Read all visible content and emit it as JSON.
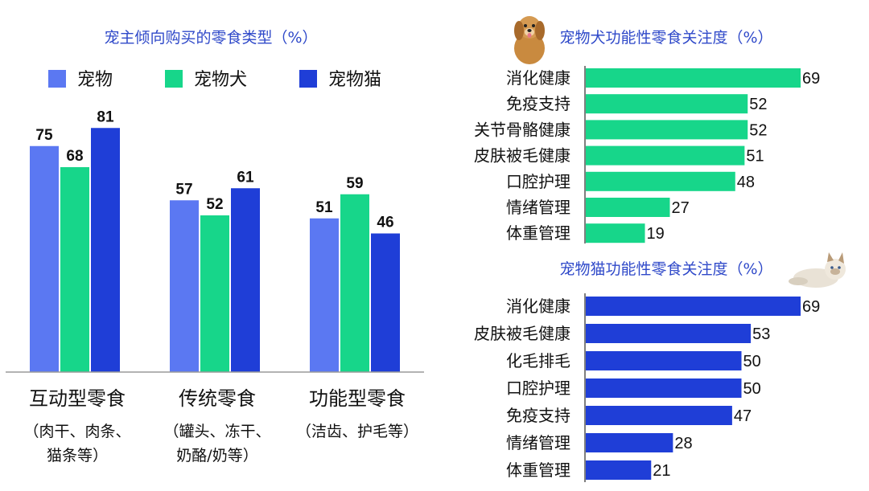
{
  "colors": {
    "pet": "#5b78f2",
    "dog": "#17d68a",
    "cat": "#1f3ed7",
    "title": "#2f49c9"
  },
  "chart_data": [
    {
      "type": "bar",
      "title": "宠主倾向购买的零食类型（%）",
      "categories": [
        "互动型零食",
        "传统零食",
        "功能型零食"
      ],
      "category_notes": [
        [
          "（肉干、肉条、",
          "猫条等）"
        ],
        [
          "（罐头、冻干、",
          "奶酪/奶等）"
        ],
        [
          "（洁齿、护毛等）"
        ]
      ],
      "series": [
        {
          "name": "宠物",
          "values": [
            75,
            57,
            51
          ]
        },
        {
          "name": "宠物犬",
          "values": [
            68,
            52,
            59
          ]
        },
        {
          "name": "宠物猫",
          "values": [
            81,
            61,
            46
          ]
        }
      ],
      "ylim": [
        0,
        100
      ],
      "legend": "top",
      "grid": false
    },
    {
      "type": "bar",
      "orientation": "horizontal",
      "title": "宠物犬功能性零食关注度（%）",
      "categories": [
        "消化健康",
        "免疫支持",
        "关节骨骼健康",
        "皮肤被毛健康",
        "口腔护理",
        "情绪管理",
        "体重管理"
      ],
      "values": [
        69,
        52,
        52,
        51,
        48,
        27,
        19
      ],
      "xlim": [
        0,
        70
      ]
    },
    {
      "type": "bar",
      "orientation": "horizontal",
      "title": "宠物猫功能性零食关注度（%）",
      "categories": [
        "消化健康",
        "皮肤被毛健康",
        "化毛排毛",
        "口腔护理",
        "免疫支持",
        "情绪管理",
        "体重管理"
      ],
      "values": [
        69,
        53,
        50,
        50,
        47,
        28,
        21
      ],
      "xlim": [
        0,
        70
      ]
    }
  ]
}
